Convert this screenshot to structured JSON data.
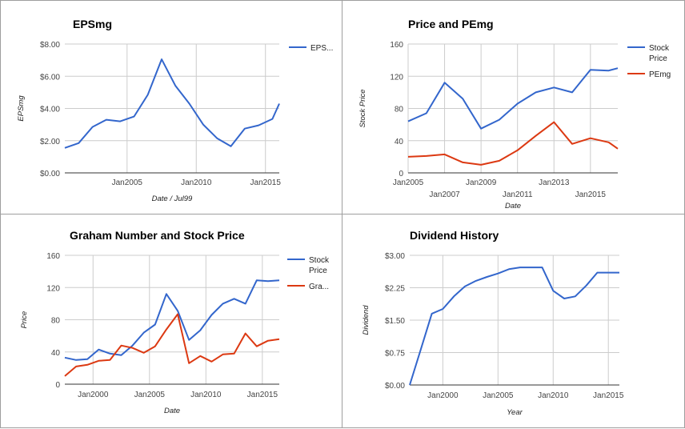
{
  "colors": {
    "stock": "#3366cc",
    "secondary": "#dc3912",
    "grid": "#cccccc",
    "axis": "#333333"
  },
  "chart_data": [
    {
      "id": "eps",
      "type": "line",
      "title": "EPSmg",
      "xlabel": "Date / Jul99",
      "ylabel": "EPSmg",
      "x_ticks": [
        {
          "x": 2005,
          "label": "Jan2005"
        },
        {
          "x": 2010,
          "label": "Jan2010"
        },
        {
          "x": 2015,
          "label": "Jan2015"
        }
      ],
      "y_ticks": [
        {
          "y": 0,
          "label": "$0.00"
        },
        {
          "y": 2,
          "label": "$2.00"
        },
        {
          "y": 4,
          "label": "$4.00"
        },
        {
          "y": 6,
          "label": "$6.00"
        },
        {
          "y": 8,
          "label": "$8.00"
        }
      ],
      "xlim": [
        2000.5,
        2016
      ],
      "ylim": [
        0,
        8
      ],
      "grid": true,
      "legend_position": "right",
      "series": [
        {
          "name": "EPS...",
          "color_key": "stock",
          "x": [
            2000.5,
            2001.5,
            2002.5,
            2003.5,
            2004.5,
            2005.5,
            2006.5,
            2007.5,
            2008.5,
            2009.5,
            2010.5,
            2011.5,
            2012.5,
            2013.5,
            2014.5,
            2015.5,
            2016
          ],
          "y": [
            1.55,
            1.85,
            2.85,
            3.3,
            3.2,
            3.5,
            4.85,
            7.05,
            5.4,
            4.3,
            3.0,
            2.15,
            1.65,
            2.75,
            2.95,
            3.35,
            4.3
          ]
        }
      ]
    },
    {
      "id": "price-pe",
      "type": "line",
      "title": "Price and PEmg",
      "xlabel": "Date",
      "ylabel": "Stock Price",
      "x_ticks": [
        {
          "x": 2005,
          "label": "Jan2005",
          "row": 0
        },
        {
          "x": 2007,
          "label": "Jan2007",
          "row": 1
        },
        {
          "x": 2009,
          "label": "Jan2009",
          "row": 0
        },
        {
          "x": 2011,
          "label": "Jan2011",
          "row": 1
        },
        {
          "x": 2013,
          "label": "Jan2013",
          "row": 0
        },
        {
          "x": 2015,
          "label": "Jan2015",
          "row": 1
        }
      ],
      "y_ticks": [
        {
          "y": 0,
          "label": "0"
        },
        {
          "y": 40,
          "label": "40"
        },
        {
          "y": 80,
          "label": "80"
        },
        {
          "y": 120,
          "label": "120"
        },
        {
          "y": 160,
          "label": "160"
        }
      ],
      "xlim": [
        2005,
        2016.5
      ],
      "ylim": [
        0,
        160
      ],
      "grid": true,
      "legend_position": "right",
      "series": [
        {
          "name": "Stock Price",
          "color_key": "stock",
          "x": [
            2005,
            2006,
            2007,
            2008,
            2009,
            2010,
            2011,
            2012,
            2013,
            2014,
            2015,
            2016,
            2016.5
          ],
          "y": [
            64,
            74,
            112,
            92,
            55,
            66,
            86,
            100,
            106,
            100,
            128,
            127,
            130
          ]
        },
        {
          "name": "PEmg",
          "color_key": "secondary",
          "x": [
            2005,
            2006,
            2007,
            2008,
            2009,
            2010,
            2011,
            2012,
            2013,
            2014,
            2015,
            2016,
            2016.5
          ],
          "y": [
            20,
            21,
            23,
            13,
            10,
            15,
            28,
            46,
            63,
            36,
            43,
            38,
            30
          ]
        }
      ]
    },
    {
      "id": "graham",
      "type": "line",
      "title": "Graham Number and Stock Price",
      "xlabel": "Date",
      "ylabel": "Price",
      "x_ticks": [
        {
          "x": 2000,
          "label": "Jan2000"
        },
        {
          "x": 2005,
          "label": "Jan2005"
        },
        {
          "x": 2010,
          "label": "Jan2010"
        },
        {
          "x": 2015,
          "label": "Jan2015"
        }
      ],
      "y_ticks": [
        {
          "y": 0,
          "label": "0"
        },
        {
          "y": 40,
          "label": "40"
        },
        {
          "y": 80,
          "label": "80"
        },
        {
          "y": 120,
          "label": "120"
        },
        {
          "y": 160,
          "label": "160"
        }
      ],
      "xlim": [
        1997.5,
        2016.5
      ],
      "ylim": [
        0,
        160
      ],
      "grid": true,
      "legend_position": "right",
      "series": [
        {
          "name": "Stock Price",
          "color_key": "stock",
          "x": [
            1997.5,
            1998.5,
            1999.5,
            2000.5,
            2001.5,
            2002.5,
            2003.5,
            2004.5,
            2005.5,
            2006.5,
            2007.5,
            2008.5,
            2009.5,
            2010.5,
            2011.5,
            2012.5,
            2013.5,
            2014.5,
            2015.5,
            2016.5
          ],
          "y": [
            33,
            30,
            31,
            43,
            38,
            36,
            48,
            64,
            74,
            112,
            91,
            55,
            67,
            86,
            100,
            106,
            100,
            129,
            128,
            129
          ]
        },
        {
          "name": "Gra...",
          "color_key": "secondary",
          "x": [
            1997.5,
            1998.5,
            1999.5,
            2000.5,
            2001.5,
            2002.5,
            2003.5,
            2004.5,
            2005.5,
            2006.5,
            2007.5,
            2008.5,
            2009.5,
            2010.5,
            2011.5,
            2012.5,
            2013.5,
            2014.5,
            2015.5,
            2016.5
          ],
          "y": [
            10,
            22,
            24,
            29,
            30,
            48,
            45,
            39,
            47,
            68,
            87,
            26,
            35,
            28,
            37,
            38,
            63,
            47,
            54,
            56
          ]
        }
      ]
    },
    {
      "id": "dividend",
      "type": "line",
      "title": "Dividend History",
      "xlabel": "Year",
      "ylabel": "Dividend",
      "x_ticks": [
        {
          "x": 2000,
          "label": "Jan2000"
        },
        {
          "x": 2005,
          "label": "Jan2005"
        },
        {
          "x": 2010,
          "label": "Jan2010"
        },
        {
          "x": 2015,
          "label": "Jan2015"
        }
      ],
      "y_ticks": [
        {
          "y": 0,
          "label": "$0.00"
        },
        {
          "y": 0.75,
          "label": "$0.75"
        },
        {
          "y": 1.5,
          "label": "$1.50"
        },
        {
          "y": 2.25,
          "label": "$2.25"
        },
        {
          "y": 3.0,
          "label": "$3.00"
        }
      ],
      "xlim": [
        1997,
        2016
      ],
      "ylim": [
        0,
        3
      ],
      "grid": true,
      "series": [
        {
          "name": "",
          "color_key": "stock",
          "x": [
            1997,
            1998,
            1999,
            2000,
            2001,
            2002,
            2003,
            2004,
            2005,
            2006,
            2007,
            2008,
            2009,
            2010,
            2011,
            2012,
            2013,
            2014,
            2015,
            2016
          ],
          "y": [
            0,
            0.82,
            1.65,
            1.76,
            2.05,
            2.28,
            2.41,
            2.5,
            2.58,
            2.68,
            2.72,
            2.72,
            2.72,
            2.18,
            2.0,
            2.05,
            2.3,
            2.6,
            2.6,
            2.6
          ]
        }
      ]
    }
  ]
}
